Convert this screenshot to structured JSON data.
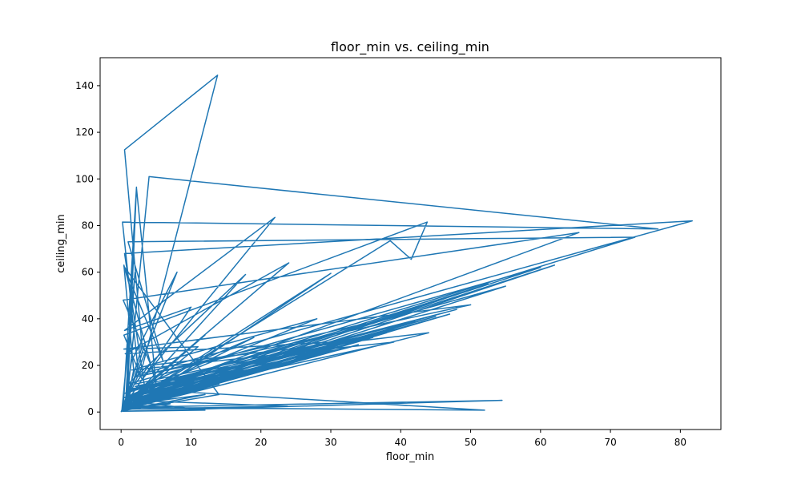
{
  "chart_data": {
    "type": "line",
    "title": "floor_min vs. ceiling_min",
    "xlabel": "floor_min",
    "ylabel": "ceiling_min",
    "xlim": [
      -3.0,
      85.8
    ],
    "ylim": [
      -7.5,
      152.0
    ],
    "xticks": [
      0,
      10,
      20,
      30,
      40,
      50,
      60,
      70,
      80
    ],
    "yticks": [
      0,
      20,
      40,
      60,
      80,
      100,
      120,
      140
    ],
    "grid": false,
    "line_color": "#1f77b4",
    "series": [
      {
        "x": [
          0.0,
          0.5,
          1.2,
          0.3,
          2.0,
          1.1,
          0.6,
          3.5,
          0.9,
          1.8,
          0.4,
          5.0,
          2.2,
          0.7,
          1.5,
          8.0,
          0.2,
          3.0,
          0.5,
          13.8,
          3.1,
          0.3,
          2.2,
          0.9,
          4.0,
          76.8,
          0.2,
          2.5,
          81.7,
          0.5,
          3.4,
          73.5,
          1.0,
          6.0,
          0.4,
          14.0,
          0.1,
          2.0,
          0.6,
          30.0,
          0.8,
          5.0,
          0.3,
          65.5,
          1.2,
          10.0,
          0.5,
          22.0,
          3.0,
          0.4,
          43.8,
          41.5,
          38.5,
          0.2,
          12.0,
          1.0,
          24.0,
          0.6,
          30.0,
          2.0,
          4.0,
          44.0,
          0.3,
          1.5,
          52.0,
          0.8,
          3.0,
          12.0,
          0.2,
          54.5,
          0.6,
          7.0,
          0.3,
          23.8,
          1.0,
          19.0,
          0.5,
          35.0,
          2.0,
          50.0,
          0.4,
          11.0,
          0.2,
          16.0,
          0.7,
          39.0,
          1.5,
          28.0,
          0.3,
          48.0,
          2.5,
          6.5,
          0.6,
          30.0,
          0.3,
          60.0,
          1.0,
          17.8,
          0.2,
          26.0,
          0.8,
          40.0,
          2.0,
          15.0,
          0.4,
          33.0,
          1.2,
          55.0,
          0.3,
          21.0,
          0.9,
          45.0,
          0.5,
          12.0,
          0.2,
          38.0,
          1.6,
          29.0,
          0.4,
          52.5,
          1.0,
          8.0,
          0.3,
          62.0,
          0.7,
          18.0,
          0.2,
          36.0,
          1.8,
          24.0,
          0.5,
          47.0,
          0.3,
          10.0,
          0.8,
          31.0,
          0.2,
          42.0,
          1.1,
          22.0,
          0.4,
          28.0,
          0.6,
          14.0,
          0.3,
          34.0
        ],
        "y": [
          0.0,
          4.0,
          10.0,
          3.0,
          15.0,
          8.0,
          2.5,
          30.0,
          5.0,
          18.0,
          63.0,
          12.0,
          96.0,
          7.0,
          22.0,
          60.0,
          1.0,
          28.0,
          112.5,
          144.5,
          20.0,
          1.5,
          96.5,
          6.0,
          101.0,
          78.5,
          81.5,
          16.0,
          82.0,
          68.0,
          10.0,
          75.0,
          73.0,
          22.0,
          62.5,
          7.5,
          0.5,
          60.0,
          3.0,
          59.5,
          0.8,
          15.0,
          48.0,
          77.0,
          6.0,
          45.0,
          35.0,
          83.5,
          14.0,
          33.0,
          81.5,
          65.5,
          73.5,
          2.0,
          33.0,
          5.0,
          64.0,
          25.0,
          30.0,
          12.0,
          20.0,
          34.0,
          1.0,
          10.0,
          0.8,
          2.0,
          4.0,
          0.8,
          0.3,
          5.0,
          2.0,
          3.5,
          1.2,
          2.5,
          5.0,
          32.0,
          8.0,
          38.0,
          15.0,
          46.0,
          27.0,
          28.0,
          2.0,
          22.0,
          5.0,
          30.0,
          18.0,
          40.0,
          6.0,
          44.0,
          9.0,
          10.0,
          2.5,
          26.0,
          4.0,
          62.0,
          12.0,
          59.0,
          1.0,
          23.0,
          6.0,
          36.0,
          11.0,
          15.5,
          3.0,
          28.0,
          9.0,
          54.0,
          2.0,
          19.0,
          5.0,
          41.0,
          3.0,
          7.5,
          0.6,
          34.0,
          10.0,
          27.0,
          2.0,
          55.0,
          6.0,
          8.0,
          1.5,
          63.0,
          4.0,
          17.0,
          0.8,
          32.0,
          10.0,
          21.0,
          3.0,
          42.0,
          1.0,
          9.0,
          5.0,
          28.0,
          0.5,
          39.0,
          7.0,
          20.0,
          2.0,
          24.0,
          4.0,
          12.0,
          1.0,
          29.0
        ]
      }
    ]
  }
}
